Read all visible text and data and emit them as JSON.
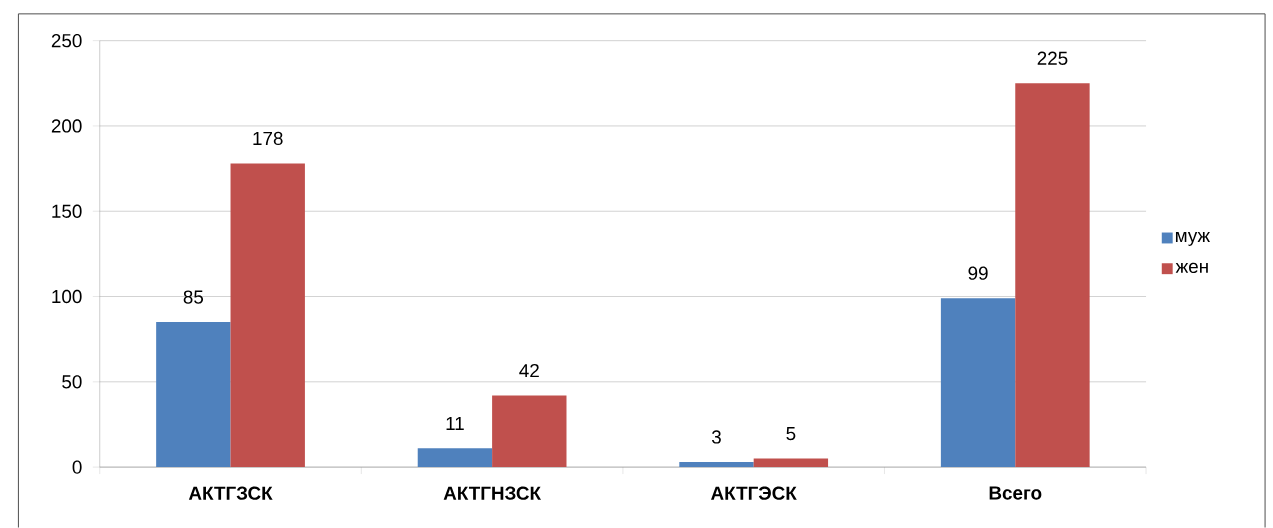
{
  "chart_data": {
    "type": "bar",
    "categories": [
      "АКТГЗСК",
      "АКТГНЗСК",
      "АКТГЭСК",
      "Всего"
    ],
    "series": [
      {
        "name": "муж",
        "color": "#4f81bd",
        "values": [
          85,
          11,
          3,
          99
        ]
      },
      {
        "name": "жен",
        "color": "#c0504d",
        "values": [
          178,
          42,
          5,
          225
        ]
      }
    ],
    "ylim": [
      0,
      250
    ],
    "yticks": [
      0,
      50,
      100,
      150,
      200,
      250
    ],
    "grid": "y",
    "legend": "right",
    "data_labels": true
  }
}
